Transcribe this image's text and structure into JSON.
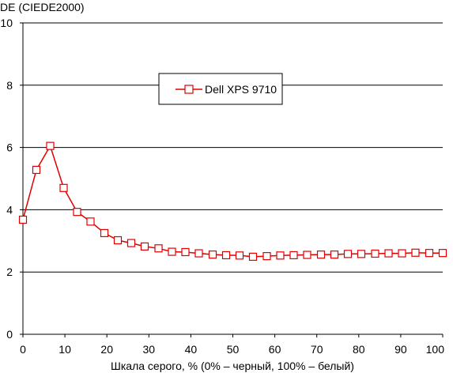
{
  "chart_data": {
    "type": "line",
    "title": "",
    "ylabel": "DE (CIEDE2000)",
    "xlabel": "Шкала серого, % (0% – черный, 100% – белый)",
    "xlim": [
      0,
      100
    ],
    "ylim": [
      0,
      10
    ],
    "x_ticks": [
      0,
      10,
      20,
      30,
      40,
      50,
      60,
      70,
      80,
      90,
      100
    ],
    "y_ticks": [
      0,
      2,
      4,
      6,
      8,
      10
    ],
    "grid": "horizontal",
    "legend_position": "top-center",
    "series": [
      {
        "name": "Dell XPS 9710",
        "color": "#e00000",
        "marker": "open-square",
        "x": [
          0,
          3.2,
          6.5,
          9.7,
          12.9,
          16.1,
          19.4,
          22.6,
          25.8,
          29.0,
          32.3,
          35.5,
          38.7,
          41.9,
          45.2,
          48.4,
          51.6,
          54.8,
          58.1,
          61.3,
          64.5,
          67.7,
          71.0,
          74.2,
          77.4,
          80.6,
          83.9,
          87.1,
          90.3,
          93.5,
          96.8,
          100
        ],
        "y": [
          3.68,
          5.28,
          6.05,
          4.7,
          3.93,
          3.62,
          3.25,
          3.02,
          2.93,
          2.82,
          2.76,
          2.65,
          2.64,
          2.6,
          2.56,
          2.54,
          2.53,
          2.49,
          2.51,
          2.53,
          2.54,
          2.55,
          2.56,
          2.56,
          2.58,
          2.58,
          2.59,
          2.6,
          2.6,
          2.62,
          2.61,
          2.61
        ]
      }
    ]
  }
}
